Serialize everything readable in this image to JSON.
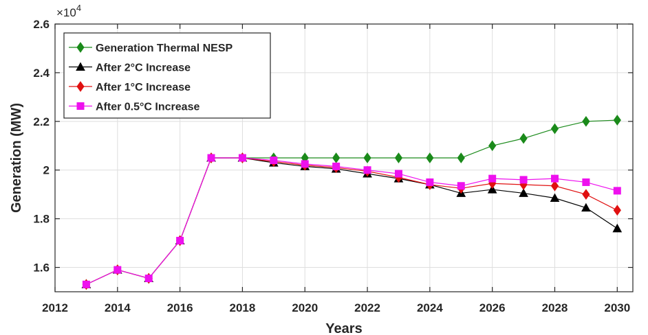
{
  "chart_data": {
    "type": "line",
    "title": "",
    "xlabel": "Years",
    "ylabel": "Generation (MW)",
    "y_exponent_label": "×10",
    "y_exponent_power": "4",
    "xlim": [
      2012,
      2030.5
    ],
    "ylim": [
      1.5,
      2.6
    ],
    "x_ticks": [
      2012,
      2014,
      2016,
      2018,
      2020,
      2022,
      2024,
      2026,
      2028,
      2030
    ],
    "x_tick_labels": [
      "2012",
      "2014",
      "2016",
      "2018",
      "2020",
      "2022",
      "2024",
      "2026",
      "2028",
      "2030"
    ],
    "y_ticks": [
      1.6,
      1.8,
      2.0,
      2.2,
      2.4,
      2.6
    ],
    "y_tick_labels": [
      "1.6",
      "1.8",
      "2",
      "2.2",
      "2.4",
      "2.6"
    ],
    "grid": true,
    "legend_position": "top-left",
    "x": [
      2013,
      2014,
      2015,
      2016,
      2017,
      2018,
      2019,
      2020,
      2021,
      2022,
      2023,
      2024,
      2025,
      2026,
      2027,
      2028,
      2029,
      2030
    ],
    "series": [
      {
        "name": "Generation Thermal NESP",
        "color": "#1a8a1a",
        "marker": "diamond",
        "values": [
          1.53,
          1.59,
          1.555,
          1.71,
          2.05,
          2.05,
          2.05,
          2.05,
          2.05,
          2.05,
          2.05,
          2.05,
          2.05,
          2.1,
          2.13,
          2.17,
          2.2,
          2.205
        ]
      },
      {
        "name": "After 2°C Increase",
        "color": "#000000",
        "marker": "triangle",
        "values": [
          1.53,
          1.59,
          1.555,
          1.71,
          2.05,
          2.05,
          2.03,
          2.015,
          2.005,
          1.985,
          1.965,
          1.94,
          1.905,
          1.92,
          1.905,
          1.885,
          1.845,
          1.76
        ]
      },
      {
        "name": "After 1°C Increase",
        "color": "#e01010",
        "marker": "diamond",
        "values": [
          1.53,
          1.59,
          1.555,
          1.71,
          2.05,
          2.05,
          2.035,
          2.02,
          2.01,
          1.995,
          1.97,
          1.94,
          1.925,
          1.945,
          1.94,
          1.935,
          1.9,
          1.835
        ]
      },
      {
        "name": "After 0.5°C Increase",
        "color": "#ee11ee",
        "marker": "square",
        "values": [
          1.53,
          1.59,
          1.555,
          1.71,
          2.05,
          2.05,
          2.04,
          2.025,
          2.015,
          2.0,
          1.985,
          1.95,
          1.935,
          1.965,
          1.96,
          1.965,
          1.95,
          1.915
        ]
      }
    ]
  }
}
